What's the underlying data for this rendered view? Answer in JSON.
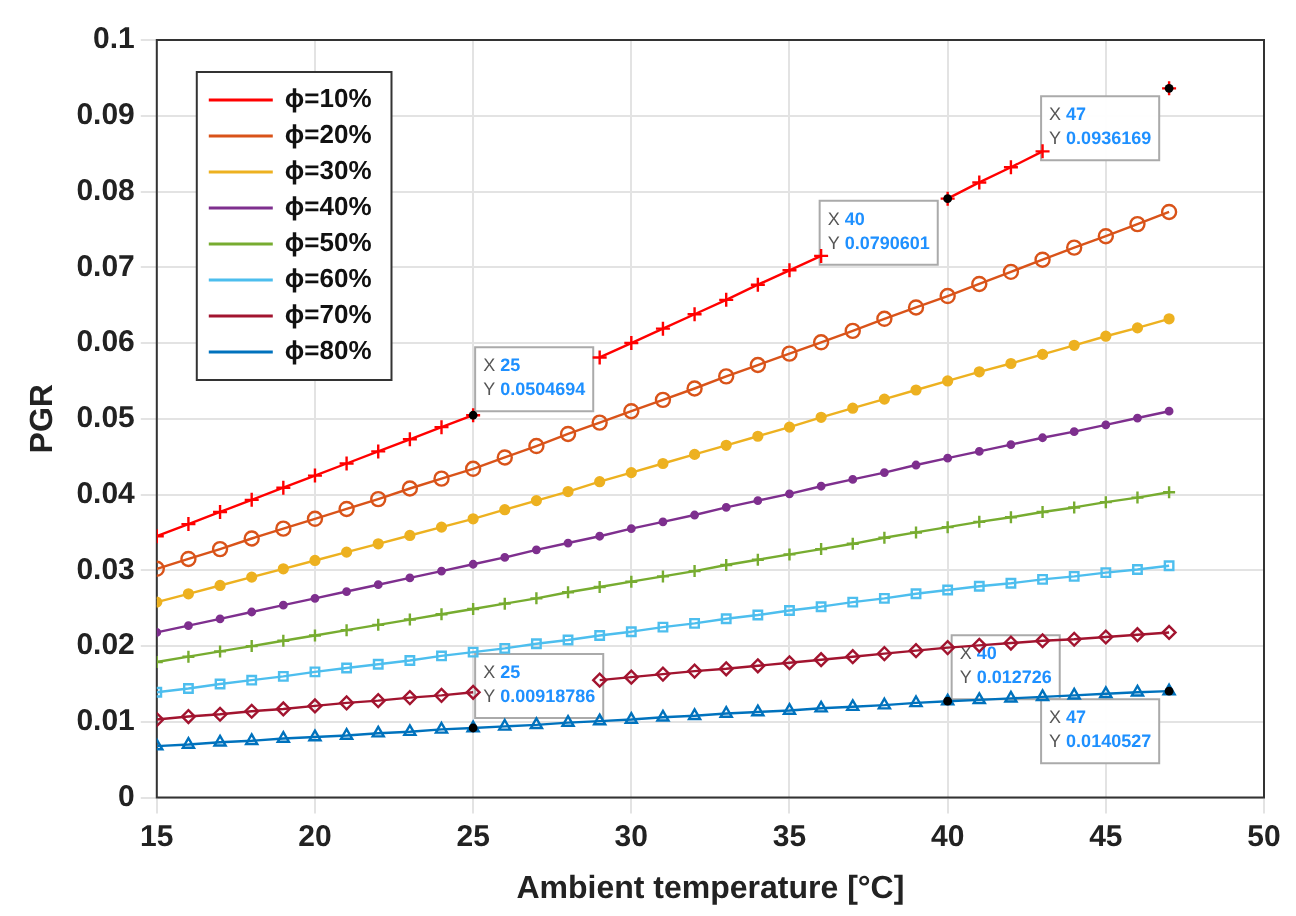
{
  "chart_data": {
    "type": "line",
    "xlabel": "Ambient temperature [°C]",
    "ylabel": "PGR",
    "x": [
      15,
      16,
      17,
      18,
      19,
      20,
      21,
      22,
      23,
      24,
      25,
      26,
      27,
      28,
      29,
      30,
      31,
      32,
      33,
      34,
      35,
      36,
      37,
      38,
      39,
      40,
      41,
      42,
      43,
      44,
      45,
      46,
      47
    ],
    "series": [
      {
        "name": "ϕ=10%",
        "color": "#ff0000",
        "marker": "cross",
        "values": [
          0.0345,
          0.0361,
          0.0377,
          0.0393,
          0.0409,
          0.0425,
          0.0441,
          0.0457,
          0.0473,
          0.0489,
          0.0504694,
          null,
          null,
          null,
          0.0581,
          0.06,
          0.0619,
          0.0638,
          0.0657,
          0.0677,
          0.0696,
          0.0715,
          null,
          null,
          null,
          0.0790601,
          0.0812,
          0.0832,
          0.0853,
          null,
          null,
          null,
          0.0936169
        ]
      },
      {
        "name": "ϕ=20%",
        "color": "#d95319",
        "marker": "circle",
        "values": [
          0.0302,
          0.0315,
          0.0328,
          0.0342,
          0.0355,
          0.0368,
          0.0381,
          0.0394,
          0.0408,
          0.0421,
          0.0434,
          0.0449,
          0.0464,
          0.048,
          0.0495,
          0.051,
          0.0525,
          0.054,
          0.0556,
          0.0571,
          0.0586,
          0.0601,
          0.0616,
          0.0632,
          0.0647,
          0.0662,
          0.0678,
          0.0694,
          0.071,
          0.0726,
          0.0741,
          0.0757,
          0.0773
        ]
      },
      {
        "name": "ϕ=30%",
        "color": "#edb120",
        "marker": "circle",
        "values": [
          0.0258,
          0.0269,
          0.028,
          0.0291,
          0.0302,
          0.0313,
          0.0324,
          0.0335,
          0.0346,
          0.0357,
          0.0368,
          0.038,
          0.0392,
          0.0404,
          0.0417,
          0.0429,
          0.0441,
          0.0453,
          0.0465,
          0.0477,
          0.0489,
          0.0502,
          0.0514,
          0.0526,
          0.0538,
          0.055,
          0.0562,
          0.0573,
          0.0585,
          0.0597,
          0.0609,
          0.062,
          0.0632
        ]
      },
      {
        "name": "ϕ=40%",
        "color": "#7e2f8e",
        "marker": "circle",
        "values": [
          0.0218,
          0.0227,
          0.0236,
          0.0245,
          0.0254,
          0.0263,
          0.0272,
          0.0281,
          0.029,
          0.0299,
          0.0308,
          0.0317,
          0.0327,
          0.0336,
          0.0345,
          0.0355,
          0.0364,
          0.0373,
          0.0383,
          0.0392,
          0.0401,
          0.0411,
          0.042,
          0.0429,
          0.0439,
          0.0448,
          0.0457,
          0.0466,
          0.0475,
          0.0483,
          0.0492,
          0.0501,
          0.051
        ]
      },
      {
        "name": "ϕ=50%",
        "color": "#77ac30",
        "marker": "cross",
        "values": [
          0.0179,
          0.0186,
          0.0193,
          0.02,
          0.0207,
          0.0214,
          0.0221,
          0.0228,
          0.0235,
          0.0242,
          0.0249,
          0.0256,
          0.0263,
          0.0271,
          0.0278,
          0.0285,
          0.0292,
          0.0299,
          0.0307,
          0.0314,
          0.0321,
          0.0328,
          0.0335,
          0.0343,
          0.035,
          0.0357,
          0.0364,
          0.037,
          0.0377,
          0.0383,
          0.039,
          0.0396,
          0.0403
        ]
      },
      {
        "name": "ϕ=60%",
        "color": "#4dbeee",
        "marker": "square",
        "values": [
          0.0139,
          0.0144,
          0.015,
          0.0155,
          0.016,
          0.0166,
          0.0171,
          0.0176,
          0.0181,
          0.0187,
          0.0192,
          0.0197,
          0.0203,
          0.0208,
          0.0214,
          0.0219,
          0.0225,
          0.023,
          0.0236,
          0.0241,
          0.0247,
          0.0252,
          0.0258,
          0.0263,
          0.0269,
          0.0274,
          0.0279,
          0.0283,
          0.0288,
          0.0292,
          0.0297,
          0.0301,
          0.0306
        ]
      },
      {
        "name": "ϕ=70%",
        "color": "#a2142f",
        "marker": "diamond",
        "values": [
          0.0103,
          0.0107,
          0.011,
          0.0114,
          0.0117,
          0.0121,
          0.0125,
          0.0128,
          0.0132,
          0.0135,
          0.0139,
          null,
          null,
          null,
          0.0155,
          0.0159,
          0.0163,
          0.0167,
          0.017,
          0.0174,
          0.0178,
          0.0182,
          0.0186,
          0.019,
          0.0194,
          0.0198,
          0.0201,
          0.0204,
          0.0207,
          0.0209,
          0.0212,
          0.0215,
          0.0218
        ]
      },
      {
        "name": "ϕ=80%",
        "color": "#0072bd",
        "marker": "triangle",
        "values": [
          0.0068,
          0.007,
          0.0073,
          0.0075,
          0.0078,
          0.008,
          0.0082,
          0.0085,
          0.0087,
          0.009,
          0.00918786,
          0.0094,
          0.0096,
          0.0099,
          0.0101,
          0.0103,
          0.0106,
          0.0108,
          0.0111,
          0.0113,
          0.0115,
          0.0118,
          0.012,
          0.0122,
          0.0125,
          0.012726,
          0.0129,
          0.0131,
          0.0133,
          0.0135,
          0.0137,
          0.0139,
          0.0140527
        ]
      }
    ],
    "xlim": [
      15,
      50
    ],
    "xticks": [
      15,
      20,
      25,
      30,
      35,
      40,
      45,
      50
    ],
    "ylim": [
      0,
      0.1
    ],
    "yticks": [
      0,
      0.01,
      0.02,
      0.03,
      0.04,
      0.05,
      0.06,
      0.07,
      0.08,
      0.09,
      0.1
    ],
    "grid": true,
    "legend": "top left",
    "line_style": "solid",
    "annotations": [
      {
        "text": "X 25\nY 0.0504694",
        "x": 25,
        "y": 0.0504694
      },
      {
        "text": "X 40\nY 0.0790601",
        "x": 40,
        "y": 0.0790601
      },
      {
        "text": "X 47\nY 0.0936169",
        "x": 47,
        "y": 0.0936169
      },
      {
        "text": "X 25\nY 0.00918786",
        "x": 25,
        "y": 0.00918786
      },
      {
        "text": "X 40\nY 0.012726",
        "x": 40,
        "y": 0.012726
      },
      {
        "text": "X 47\nY 0.0140527",
        "x": 47,
        "y": 0.0140527
      }
    ]
  }
}
